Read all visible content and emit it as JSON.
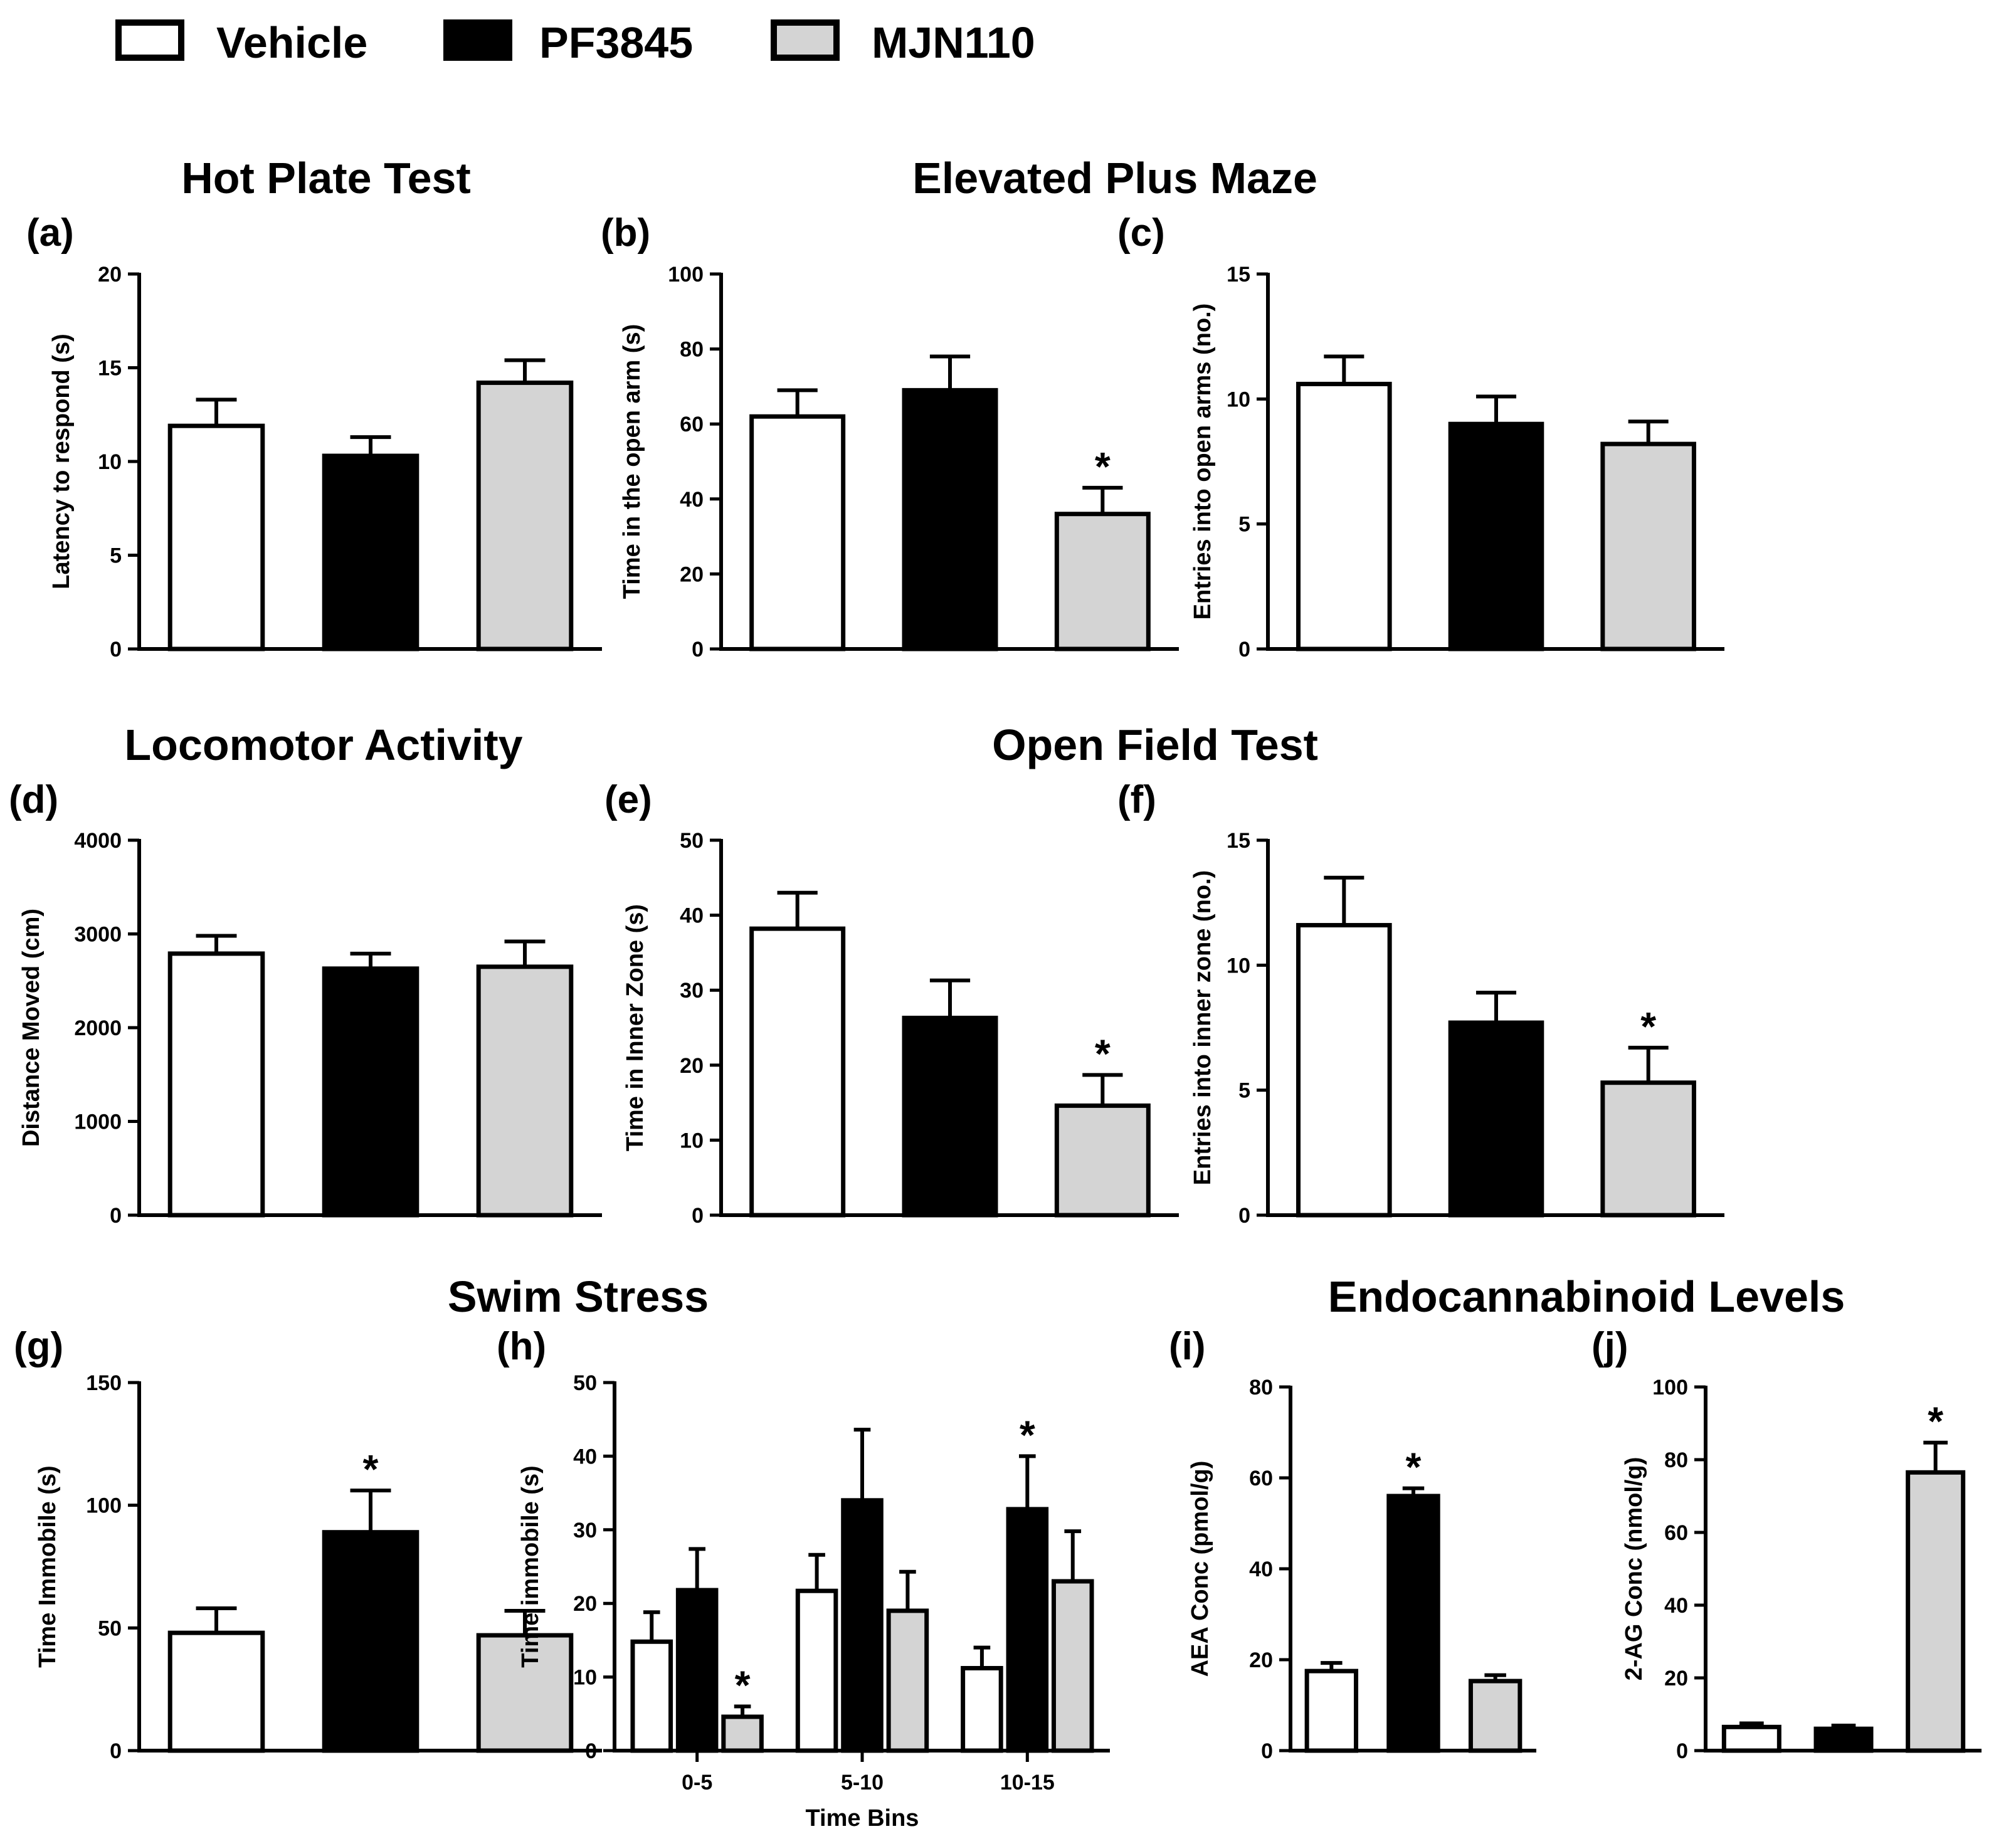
{
  "legend": [
    {
      "label": "Vehicle",
      "color": "#ffffff"
    },
    {
      "label": "PF3845",
      "color": "#000000"
    },
    {
      "label": "MJN110",
      "color": "#d4d4d4"
    }
  ],
  "group_titles": {
    "hot_plate": "Hot Plate Test",
    "elevated_plus_maze": "Elevated Plus Maze",
    "locomotor": "Locomotor Activity",
    "open_field": "Open Field Test",
    "swim_stress": "Swim Stress",
    "endocannabinoid": "Endocannabinoid Levels"
  },
  "chart_data": [
    {
      "id": "a",
      "label": "(a)",
      "type": "bar",
      "ylabel": "Latency to respond (s)",
      "ylim": [
        0,
        20
      ],
      "yticks": [
        0,
        5,
        10,
        15,
        20
      ],
      "categories": [
        "Vehicle",
        "PF3845",
        "MJN110"
      ],
      "values": [
        11.9,
        10.3,
        14.2
      ],
      "errors": [
        1.4,
        1.0,
        1.2
      ],
      "significant": [
        false,
        false,
        false
      ]
    },
    {
      "id": "b",
      "label": "(b)",
      "type": "bar",
      "ylabel": "Time in the open arm (s)",
      "ylim": [
        0,
        100
      ],
      "yticks": [
        0,
        20,
        40,
        60,
        80,
        100
      ],
      "categories": [
        "Vehicle",
        "PF3845",
        "MJN110"
      ],
      "values": [
        62,
        69,
        36
      ],
      "errors": [
        7,
        9,
        7
      ],
      "significant": [
        false,
        false,
        true
      ]
    },
    {
      "id": "c",
      "label": "(c)",
      "type": "bar",
      "ylabel": "Entries into open arms (no.)",
      "ylim": [
        0,
        15
      ],
      "yticks": [
        0,
        5,
        10,
        15
      ],
      "categories": [
        "Vehicle",
        "PF3845",
        "MJN110"
      ],
      "values": [
        10.6,
        9.0,
        8.2
      ],
      "errors": [
        1.1,
        1.1,
        0.9
      ],
      "significant": [
        false,
        false,
        false
      ]
    },
    {
      "id": "d",
      "label": "(d)",
      "type": "bar",
      "ylabel": "Distance Moved  (cm)",
      "ylim": [
        0,
        4000
      ],
      "yticks": [
        0,
        1000,
        2000,
        3000,
        4000
      ],
      "categories": [
        "Vehicle",
        "PF3845",
        "MJN110"
      ],
      "values": [
        2790,
        2630,
        2650
      ],
      "errors": [
        190,
        160,
        270
      ],
      "significant": [
        false,
        false,
        false
      ]
    },
    {
      "id": "e",
      "label": "(e)",
      "type": "bar",
      "ylabel": "Time in Inner Zone (s)",
      "ylim": [
        0,
        50
      ],
      "yticks": [
        0,
        10,
        20,
        30,
        40,
        50
      ],
      "categories": [
        "Vehicle",
        "PF3845",
        "MJN110"
      ],
      "values": [
        38.2,
        26.3,
        14.6
      ],
      "errors": [
        4.8,
        5.0,
        4.1
      ],
      "significant": [
        false,
        false,
        true
      ]
    },
    {
      "id": "f",
      "label": "(f)",
      "type": "bar",
      "ylabel": "Entries into inner zone (no.)",
      "ylim": [
        0,
        15
      ],
      "yticks": [
        0,
        5,
        10,
        15
      ],
      "categories": [
        "Vehicle",
        "PF3845",
        "MJN110"
      ],
      "values": [
        11.6,
        7.7,
        5.3
      ],
      "errors": [
        1.9,
        1.2,
        1.4
      ],
      "significant": [
        false,
        false,
        true
      ]
    },
    {
      "id": "g",
      "label": "(g)",
      "type": "bar",
      "ylabel": "Time Immobile (s)",
      "ylim": [
        0,
        150
      ],
      "yticks": [
        0,
        50,
        100,
        150
      ],
      "categories": [
        "Vehicle",
        "PF3845",
        "MJN110"
      ],
      "values": [
        48,
        89,
        47
      ],
      "errors": [
        10,
        17,
        10
      ],
      "significant": [
        false,
        true,
        false
      ]
    },
    {
      "id": "h",
      "label": "(h)",
      "type": "grouped_bar",
      "ylabel": "Time immobile (s)",
      "xlabel": "Time  Bins",
      "ylim": [
        0,
        50
      ],
      "yticks": [
        0,
        10,
        20,
        30,
        40,
        50
      ],
      "categories": [
        "0-5",
        "5-10",
        "10-15"
      ],
      "series": [
        {
          "name": "Vehicle",
          "values": [
            14.8,
            21.7,
            11.2
          ],
          "errors": [
            4.0,
            4.9,
            2.8
          ],
          "significant": [
            false,
            false,
            false
          ]
        },
        {
          "name": "PF3845",
          "values": [
            21.8,
            34.0,
            32.8
          ],
          "errors": [
            5.6,
            9.6,
            7.2
          ],
          "significant": [
            false,
            false,
            true
          ]
        },
        {
          "name": "MJN110",
          "values": [
            4.6,
            19.0,
            23.0
          ],
          "errors": [
            1.4,
            5.3,
            6.8
          ],
          "significant": [
            true,
            false,
            false
          ]
        }
      ]
    },
    {
      "id": "i",
      "label": "(i)",
      "type": "bar",
      "ylabel": "AEA Conc (pmol/g)",
      "ylim": [
        0,
        80
      ],
      "yticks": [
        0,
        20,
        40,
        60,
        80
      ],
      "categories": [
        "Vehicle",
        "PF3845",
        "MJN110"
      ],
      "values": [
        17.5,
        56,
        15.3
      ],
      "errors": [
        1.8,
        1.7,
        1.3
      ],
      "significant": [
        false,
        true,
        false
      ]
    },
    {
      "id": "j",
      "label": "(j)",
      "type": "bar",
      "ylabel": "2-AG Conc (nmol/g)",
      "ylim": [
        0,
        100
      ],
      "yticks": [
        0,
        20,
        40,
        60,
        80,
        100
      ],
      "categories": [
        "Vehicle",
        "PF3845",
        "MJN110"
      ],
      "values": [
        6.5,
        6.0,
        76.5
      ],
      "errors": [
        1.0,
        0.9,
        8.2
      ],
      "significant": [
        false,
        false,
        true
      ]
    }
  ]
}
